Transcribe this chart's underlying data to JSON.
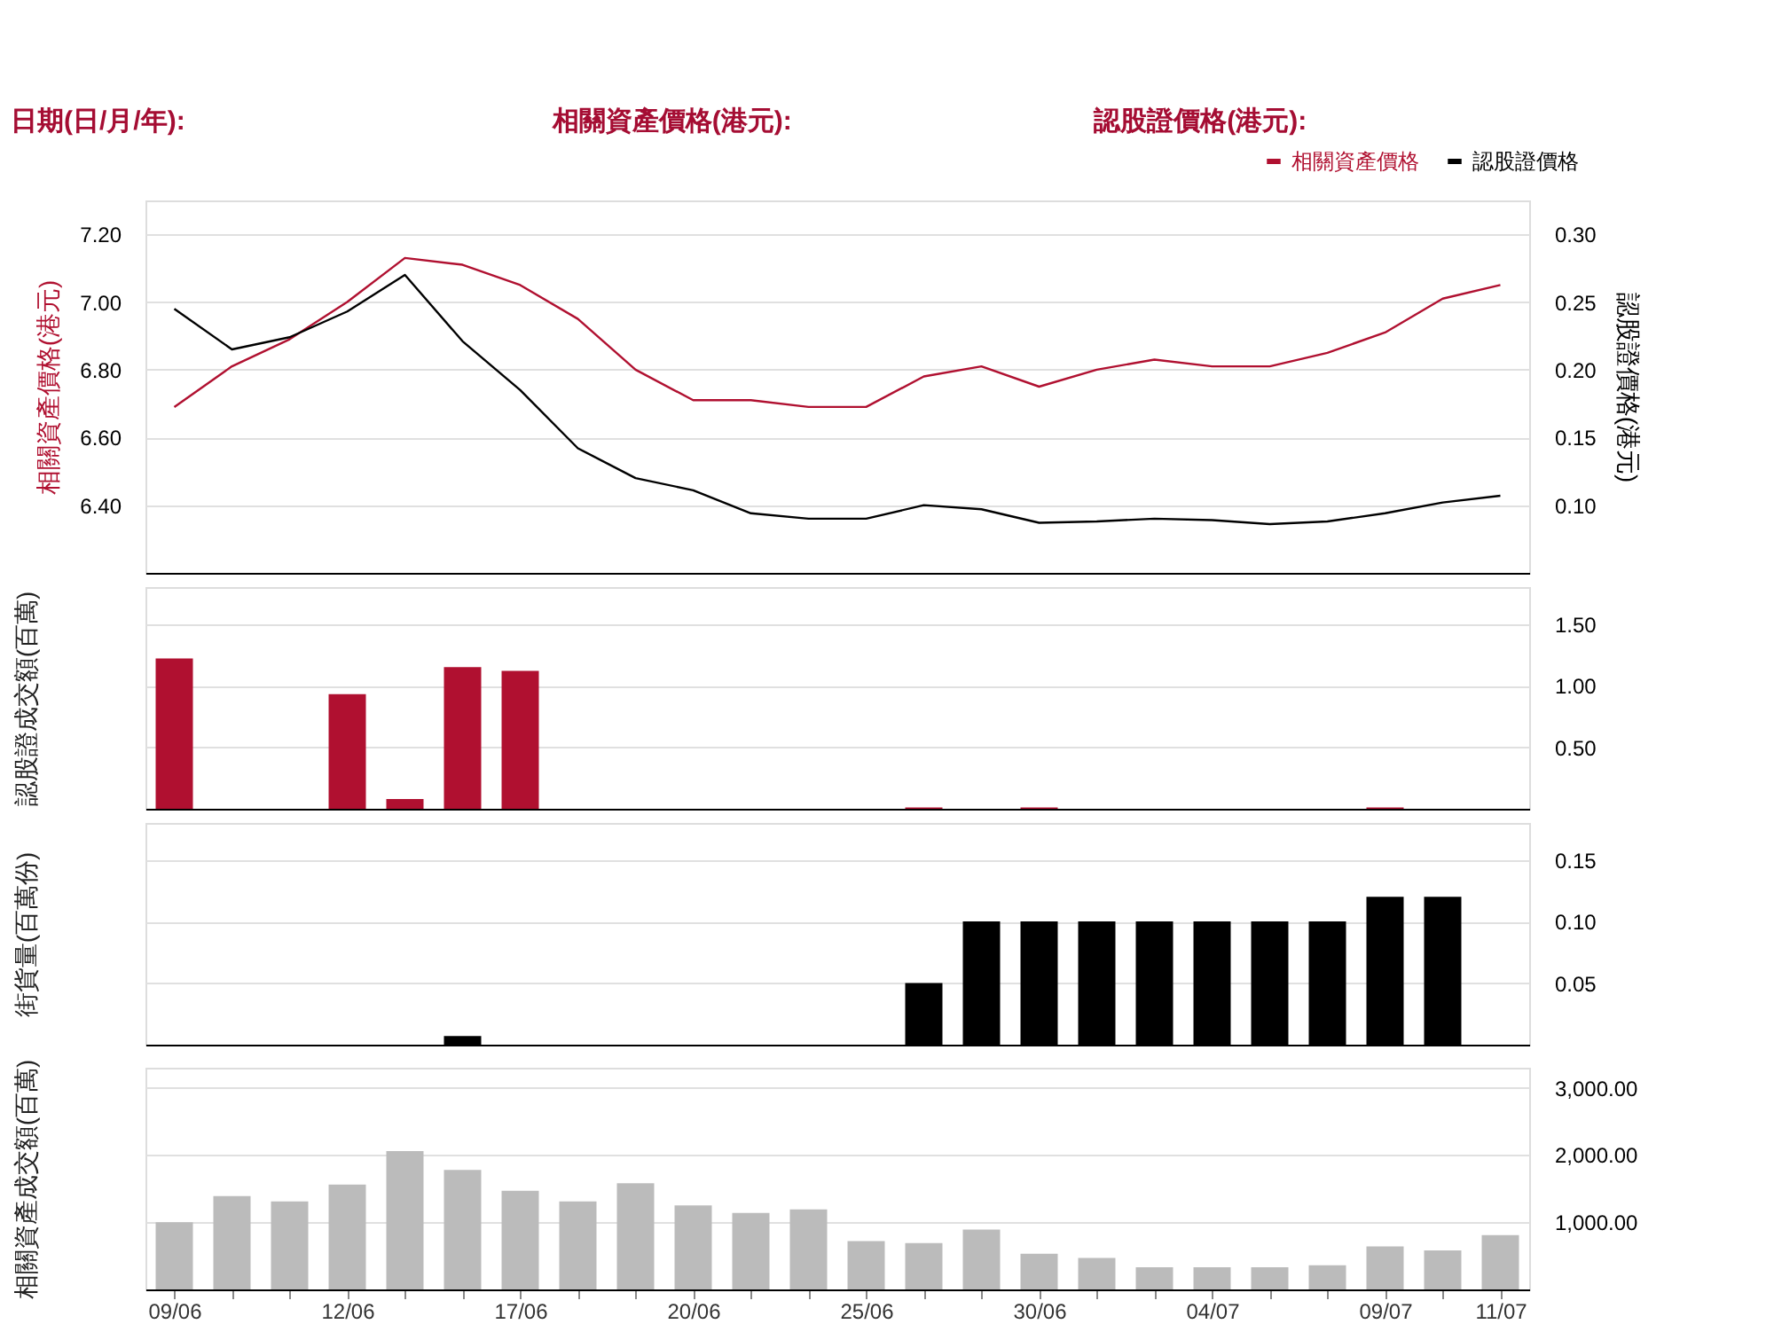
{
  "chart_data": [
    {
      "type": "line",
      "categories": [
        null,
        null,
        null,
        null,
        null,
        null,
        null,
        null,
        null,
        null,
        null,
        null,
        null,
        null,
        null,
        null,
        null,
        null,
        null,
        null,
        null,
        null,
        null,
        null
      ],
      "series": [
        {
          "name": "相關資產價格",
          "color": "#b01030",
          "values": [
            6.69,
            6.81,
            6.89,
            7.0,
            7.13,
            7.11,
            7.05,
            6.95,
            6.8,
            6.71,
            6.71,
            6.69,
            6.69,
            6.78,
            6.81,
            6.75,
            6.8,
            6.83,
            6.81,
            6.81,
            6.85,
            6.91,
            7.01,
            7.05
          ]
        },
        {
          "name": "認股證價格",
          "color": "#000000",
          "axis": "y2",
          "values": [
            0.245,
            0.215,
            0.224,
            0.243,
            0.27,
            0.221,
            0.185,
            0.142,
            0.12,
            0.111,
            0.094,
            0.09,
            0.09,
            0.1,
            0.097,
            0.087,
            0.088,
            0.09,
            0.089,
            0.086,
            0.088,
            0.094,
            0.102,
            0.107
          ]
        }
      ],
      "ylim": [
        6.2,
        7.3
      ],
      "yticks": [
        {
          "value": 6.4,
          "label": "6.40"
        },
        {
          "value": 6.6,
          "label": "6.60"
        },
        {
          "value": 6.8,
          "label": "6.80"
        },
        {
          "value": 7.0,
          "label": "7.00"
        },
        {
          "value": 7.2,
          "label": "7.20"
        }
      ],
      "y2lim": [
        0.05,
        0.325
      ],
      "y2ticks": [
        {
          "value": 0.1,
          "label": "0.10"
        },
        {
          "value": 0.15,
          "label": "0.15"
        },
        {
          "value": 0.2,
          "label": "0.20"
        },
        {
          "value": 0.25,
          "label": "0.25"
        },
        {
          "value": 0.3,
          "label": "0.30"
        }
      ],
      "ylabel": "相關資產價格(港元)",
      "y2label": "認股證價格(港元)",
      "legend": "top right",
      "grid": "y",
      "tick_labels": "y",
      "annotations": [
        "日期(日/月/年):",
        "相關資產價格(港元):",
        "認股證價格(港元):"
      ]
    },
    {
      "type": "bar",
      "categories": [
        null,
        null,
        null,
        null,
        null,
        null,
        null,
        null,
        null,
        null,
        null,
        null,
        null,
        null,
        null,
        null,
        null,
        null,
        null,
        null,
        null,
        null,
        null,
        null
      ],
      "series": [
        {
          "color": "#b01030",
          "values": [
            1.22,
            0,
            0,
            0.93,
            0.08,
            1.15,
            1.12,
            0,
            0,
            0,
            0,
            0,
            0,
            0.01,
            0,
            0.01,
            0,
            0,
            0,
            0,
            0,
            0.01,
            0,
            0
          ]
        }
      ],
      "ylim": [
        0,
        1.8
      ],
      "yticks": [
        {
          "value": 0.5,
          "label": "0.50"
        },
        {
          "value": 1.0,
          "label": "1.00"
        },
        {
          "value": 1.5,
          "label": "1.50"
        }
      ],
      "ylabel": "認股證成交額(百萬)",
      "grid": "y",
      "tick_labels": "y"
    },
    {
      "type": "bar",
      "categories": [
        null,
        null,
        null,
        null,
        null,
        null,
        null,
        null,
        null,
        null,
        null,
        null,
        null,
        null,
        null,
        null,
        null,
        null,
        null,
        null,
        null,
        null,
        null,
        null
      ],
      "series": [
        {
          "color": "#000000",
          "values": [
            0,
            0,
            0,
            0,
            0,
            0.007,
            0,
            0,
            0,
            0,
            0,
            0,
            0,
            0.05,
            0.1,
            0.1,
            0.1,
            0.1,
            0.1,
            0.1,
            0.1,
            0.12,
            0.12,
            0
          ]
        }
      ],
      "ylim": [
        0,
        0.18
      ],
      "yticks": [
        {
          "value": 0.05,
          "label": "0.05"
        },
        {
          "value": 0.1,
          "label": "0.10"
        },
        {
          "value": 0.15,
          "label": "0.15"
        }
      ],
      "ylabel": "街貨量(百萬份)",
      "grid": "y",
      "tick_labels": "y"
    },
    {
      "type": "bar",
      "categories": [
        "09/06",
        null,
        null,
        "12/06",
        null,
        null,
        "17/06",
        null,
        null,
        "20/06",
        null,
        null,
        "25/06",
        null,
        null,
        "30/06",
        null,
        null,
        "04/07",
        null,
        null,
        "09/07",
        null,
        "11/07"
      ],
      "series": [
        {
          "color": "#bbbbbb",
          "values": [
            1000,
            1390,
            1310,
            1560,
            2060,
            1780,
            1470,
            1310,
            1580,
            1250,
            1140,
            1190,
            720,
            690,
            890,
            530,
            470,
            330,
            330,
            330,
            360,
            640,
            580,
            810
          ]
        }
      ],
      "ylim": [
        0,
        3300
      ],
      "yticks": [
        {
          "value": 1000,
          "label": "1,000.00"
        },
        {
          "value": 2000,
          "label": "2,000.00"
        },
        {
          "value": 3000,
          "label": "3,000.00"
        }
      ],
      "ylabel": "相關資產成交額(百萬)",
      "grid": "y"
    }
  ]
}
